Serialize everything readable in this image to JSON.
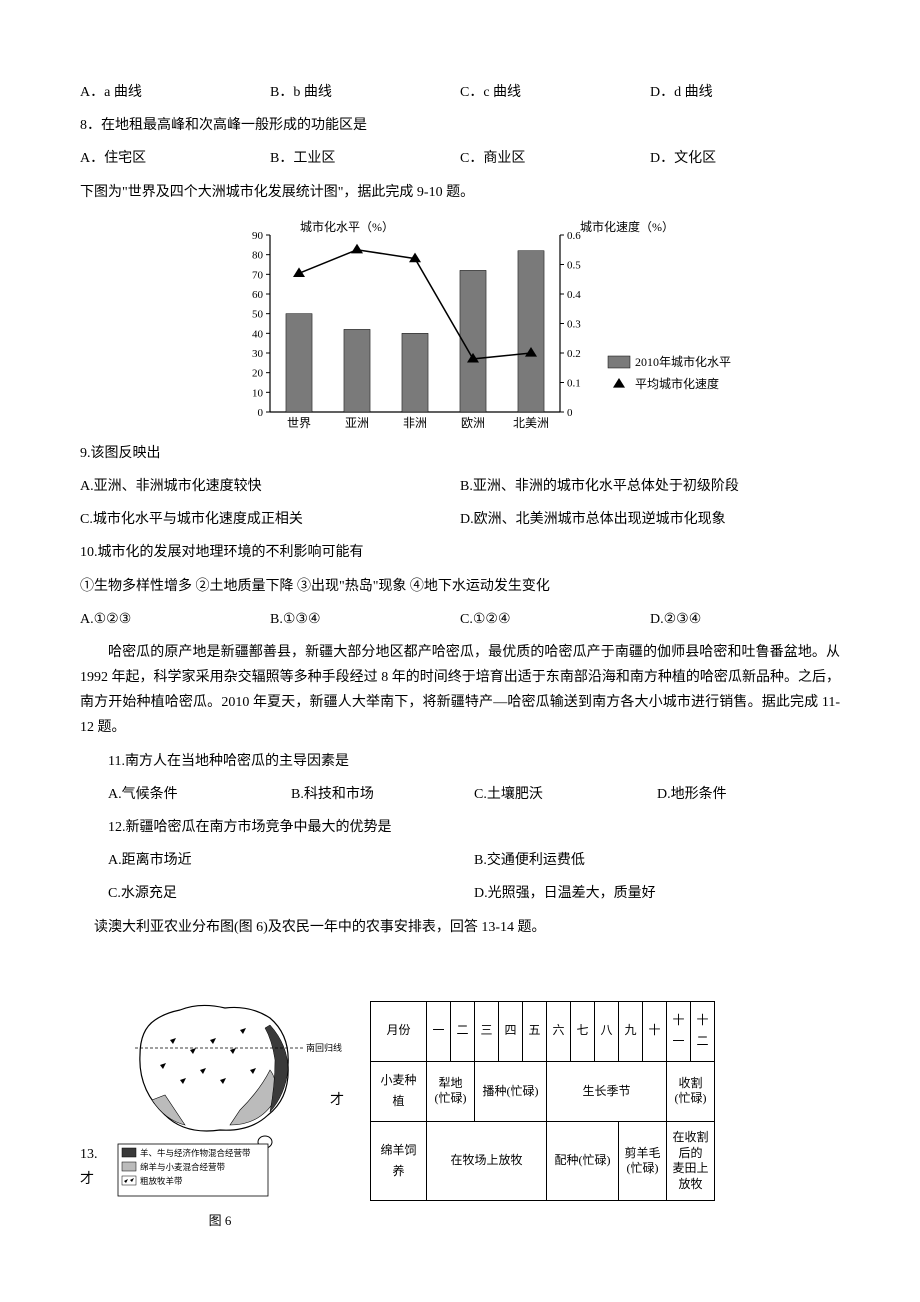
{
  "q7_options": {
    "a": "A．a 曲线",
    "b": "B．b 曲线",
    "c": "C．c 曲线",
    "d": "D．d 曲线"
  },
  "q8": {
    "stem": "8．在地租最高峰和次高峰一般形成的功能区是",
    "a": "A．住宅区",
    "b": "B．工业区",
    "c": "C．商业区",
    "d": "D．文化区"
  },
  "chart_intro": "下图为\"世界及四个大洲城市化发展统计图\"，据此完成 9-10 题。",
  "chart": {
    "left_axis_label": "城市化水平（%）",
    "right_axis_label": "城市化速度（%）",
    "left_ylim": [
      0,
      90
    ],
    "left_ticks": [
      0,
      10,
      20,
      30,
      40,
      50,
      60,
      70,
      80,
      90
    ],
    "right_ylim": [
      0,
      0.6
    ],
    "right_ticks": [
      0,
      0.1,
      0.2,
      0.3,
      0.4,
      0.5,
      0.6
    ],
    "categories": [
      "世界",
      "亚洲",
      "非洲",
      "欧洲",
      "北美洲"
    ],
    "bar_values": [
      50,
      42,
      40,
      72,
      82
    ],
    "triangle_values": [
      0.47,
      0.55,
      0.52,
      0.18,
      0.2
    ],
    "legend": {
      "bar": "2010年城市化水平",
      "triangle": "平均城市化速度"
    },
    "colors": {
      "bar_fill": "#7a7a7a",
      "axis_color": "#000000",
      "triangle_color": "#000000",
      "tick_fontsize": 11,
      "label_fontsize": 12
    },
    "bar_width_ratio": 0.45,
    "plot_bg": "#ffffff"
  },
  "q9": {
    "stem": "9.该图反映出",
    "a": "A.亚洲、非洲城市化速度较快",
    "b": "B.亚洲、非洲的城市化水平总体处于初级阶段",
    "c": "C.城市化水平与城市化速度成正相关",
    "d": "D.欧洲、北美洲城市总体出现逆城市化现象"
  },
  "q10": {
    "stem": "10.城市化的发展对地理环境的不利影响可能有",
    "choices_line": "①生物多样性增多  ②土地质量下降  ③出现\"热岛\"现象  ④地下水运动发生变化",
    "a": "A.①②③",
    "b": "B.①③④",
    "c": "C.①②④",
    "d": "D.②③④"
  },
  "passage": {
    "p1": "哈密瓜的原产地是新疆鄯善县，新疆大部分地区都产哈密瓜，最优质的哈密瓜产于南疆的伽师县哈密和吐鲁番盆地。从 1992 年起，科学家采用杂交辐照等多种手段经过 8 年的时间终于培育出适于东南部沿海和南方种植的哈密瓜新品种。之后，南方开始种植哈密瓜。2010 年夏天，新疆人大举南下，将新疆特产—哈密瓜输送到南方各大小城市进行销售。据此完成 11-12 题。"
  },
  "q11": {
    "stem": "11.南方人在当地种哈密瓜的主导因素是",
    "a": "A.气候条件",
    "b": "B.科技和市场",
    "c": "C.土壤肥沃",
    "d": "D.地形条件"
  },
  "q12": {
    "stem": "12.新疆哈密瓜在南方市场竞争中最大的优势是",
    "a": "A.距离市场近",
    "b": "B.交通便利运费低",
    "c": "C.水源充足",
    "d": "D.光照强，日温差大，质量好"
  },
  "q13_intro": "读澳大利亚农业分布图(图 6)及农民一年中的农事安排表，回答 13-14 题。",
  "q13_label": "13.才",
  "fig6_caption": "图 6",
  "map_legend": {
    "title": "",
    "items": [
      "羊、牛与经济作物混合经营带",
      "绵羊与小麦混合经营带",
      "粗放牧羊带"
    ],
    "tropic_label": "南回归线"
  },
  "schedule": {
    "header": "月份",
    "months": [
      "一",
      "二",
      "三",
      "四",
      "五",
      "六",
      "七",
      "八",
      "九",
      "十",
      "十一",
      "十二"
    ],
    "rows": [
      {
        "label": "小麦种植",
        "cells": [
          {
            "span": 2,
            "text": "犁地\n(忙碌)"
          },
          {
            "span": 3,
            "text": "播种(忙碌)"
          },
          {
            "span": 5,
            "text": "生长季节"
          },
          {
            "span": 2,
            "text": "收割\n(忙碌)"
          }
        ]
      },
      {
        "label": "绵羊饲养",
        "cells": [
          {
            "span": 5,
            "text": "在牧场上放牧"
          },
          {
            "span": 3,
            "text": "配种(忙碌)"
          },
          {
            "span": 2,
            "text": "剪羊毛\n(忙碌)"
          },
          {
            "span": 2,
            "text": "在收割后的\n麦田上放牧"
          }
        ]
      }
    ]
  }
}
